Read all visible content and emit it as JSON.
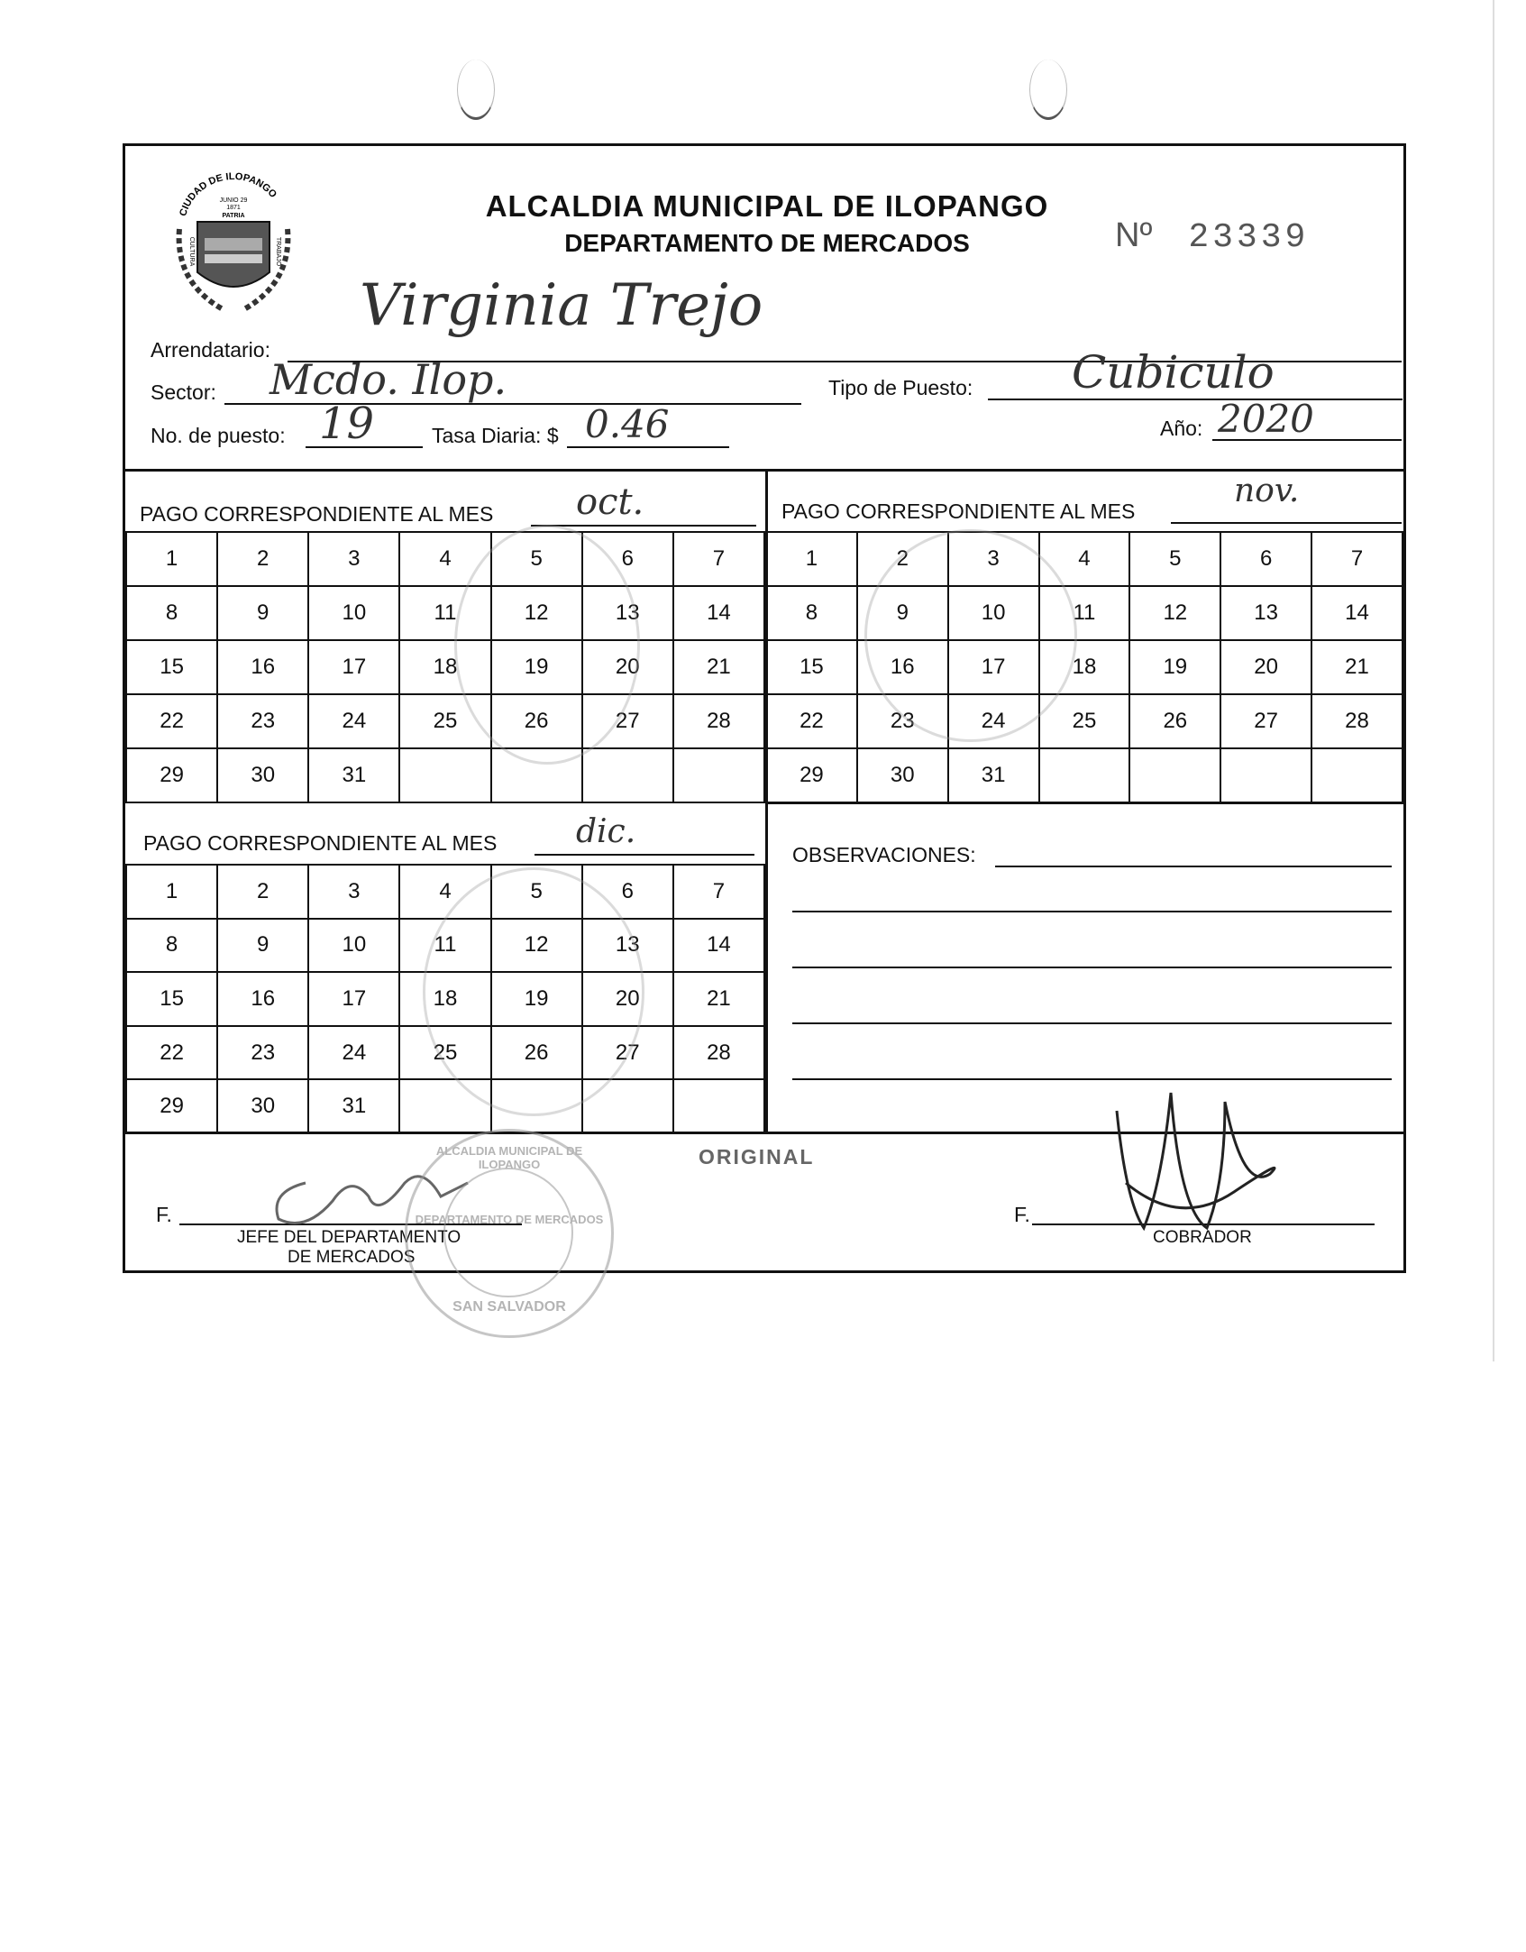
{
  "header": {
    "logo_ring_text": "CIUDAD DE ILOPANGO",
    "logo_top_text": "JUNIO 29",
    "logo_year": "1871",
    "logo_patria": "PATRIA",
    "logo_left": "CULTURA",
    "logo_right": "TRABAJO",
    "title": "ALCALDIA MUNICIPAL DE ILOPANGO",
    "subtitle": "DEPARTAMENTO DE MERCADOS",
    "number_label": "Nº",
    "number": "23339"
  },
  "fields": {
    "arrendatario_label": "Arrendatario:",
    "arrendatario_value": "Virginia Trejo",
    "sector_label": "Sector:",
    "sector_value": "Mcdo. Ilop.",
    "tipo_label": "Tipo de Puesto:",
    "tipo_value": "Cubiculo",
    "puesto_label": "No. de puesto:",
    "puesto_value": "19",
    "tasa_label": "Tasa Diaria: $",
    "tasa_value": "0.46",
    "anio_label": "Año:",
    "anio_value": "2020"
  },
  "months": {
    "head_label": "PAGO CORRESPONDIENTE AL MES",
    "oct": "oct.",
    "nov": "nov.",
    "dic": "dic."
  },
  "days": [
    [
      "1",
      "2",
      "3",
      "4",
      "5",
      "6",
      "7"
    ],
    [
      "8",
      "9",
      "10",
      "11",
      "12",
      "13",
      "14"
    ],
    [
      "15",
      "16",
      "17",
      "18",
      "19",
      "20",
      "21"
    ],
    [
      "22",
      "23",
      "24",
      "25",
      "26",
      "27",
      "28"
    ],
    [
      "29",
      "30",
      "31",
      "",
      "",
      "",
      ""
    ]
  ],
  "observaciones_label": "OBSERVACIONES:",
  "footer": {
    "original_label": "ORIGINAL",
    "f_left": "F.",
    "jefe_line1": "JEFE DEL DEPARTAMENTO",
    "jefe_line2": "DE MERCADOS",
    "f_right": "F.",
    "cobrador": "COBRADOR",
    "seal_text": "SAN SALVADOR",
    "seal_ring": "ALCALDIA MUNICIPAL DE ILOPANGO",
    "seal_sub": "DEPARTAMENTO DE MERCADOS"
  }
}
